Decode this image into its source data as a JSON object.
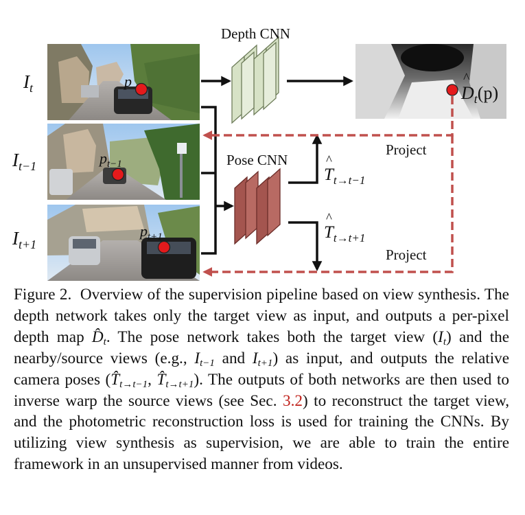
{
  "figure": {
    "labels": {
      "depth_cnn": "Depth CNN",
      "pose_cnn": "Pose CNN",
      "project_top": "Project",
      "project_bottom": "Project"
    },
    "frames": {
      "target": {
        "name": "I",
        "sub": "t",
        "point": "p",
        "point_sub": ""
      },
      "prev": {
        "name": "I",
        "sub": "t−1",
        "point": "p",
        "point_sub": "t−1"
      },
      "next": {
        "name": "I",
        "sub": "t+1",
        "point": "p",
        "point_sub": "t+1"
      }
    },
    "depth_output": {
      "symbol": "D",
      "sub": "t",
      "arg": "(p)"
    },
    "pose_outputs": [
      {
        "symbol": "T",
        "sub": "t→t−1"
      },
      {
        "symbol": "T",
        "sub": "t→t+1"
      }
    ],
    "colors": {
      "depth_cnn_fill": "#d7e2c6",
      "pose_cnn_fill": "#a4554f",
      "project_line": "#c0504d",
      "point": "#e41a1c"
    }
  },
  "caption": {
    "fig_label": "Figure 2.",
    "s1": "Overview of the supervision pipeline based on view synthesis.",
    "s2": "The depth network takes only the target view as input, and outputs a per-pixel depth map",
    "depth_map_symbol": "D̂",
    "depth_map_sub": "t",
    "s3": ". The pose network takes both the target view (",
    "target_symbol": "I",
    "target_sub": "t",
    "s4": ") and the nearby/source views (e.g.,",
    "src1_symbol": "I",
    "src1_sub": "t−1",
    "s5": "and",
    "src2_symbol": "I",
    "src2_sub": "t+1",
    "s6": ") as input, and outputs the relative camera poses (",
    "pose1_symbol": "T̂",
    "pose1_sub": "t→t−1",
    "comma": ",",
    "pose2_symbol": "T̂",
    "pose2_sub": "t→t+1",
    "s7": ").",
    "s8": "The outputs of both networks are then used to inverse warp the source views (see Sec.",
    "ref": "3.2",
    "s9": ") to reconstruct the target view, and the photometric reconstruction loss is used for training the CNNs. By utilizing view synthesis as supervision, we are able to train the entire framework in an unsupervised manner from videos."
  }
}
